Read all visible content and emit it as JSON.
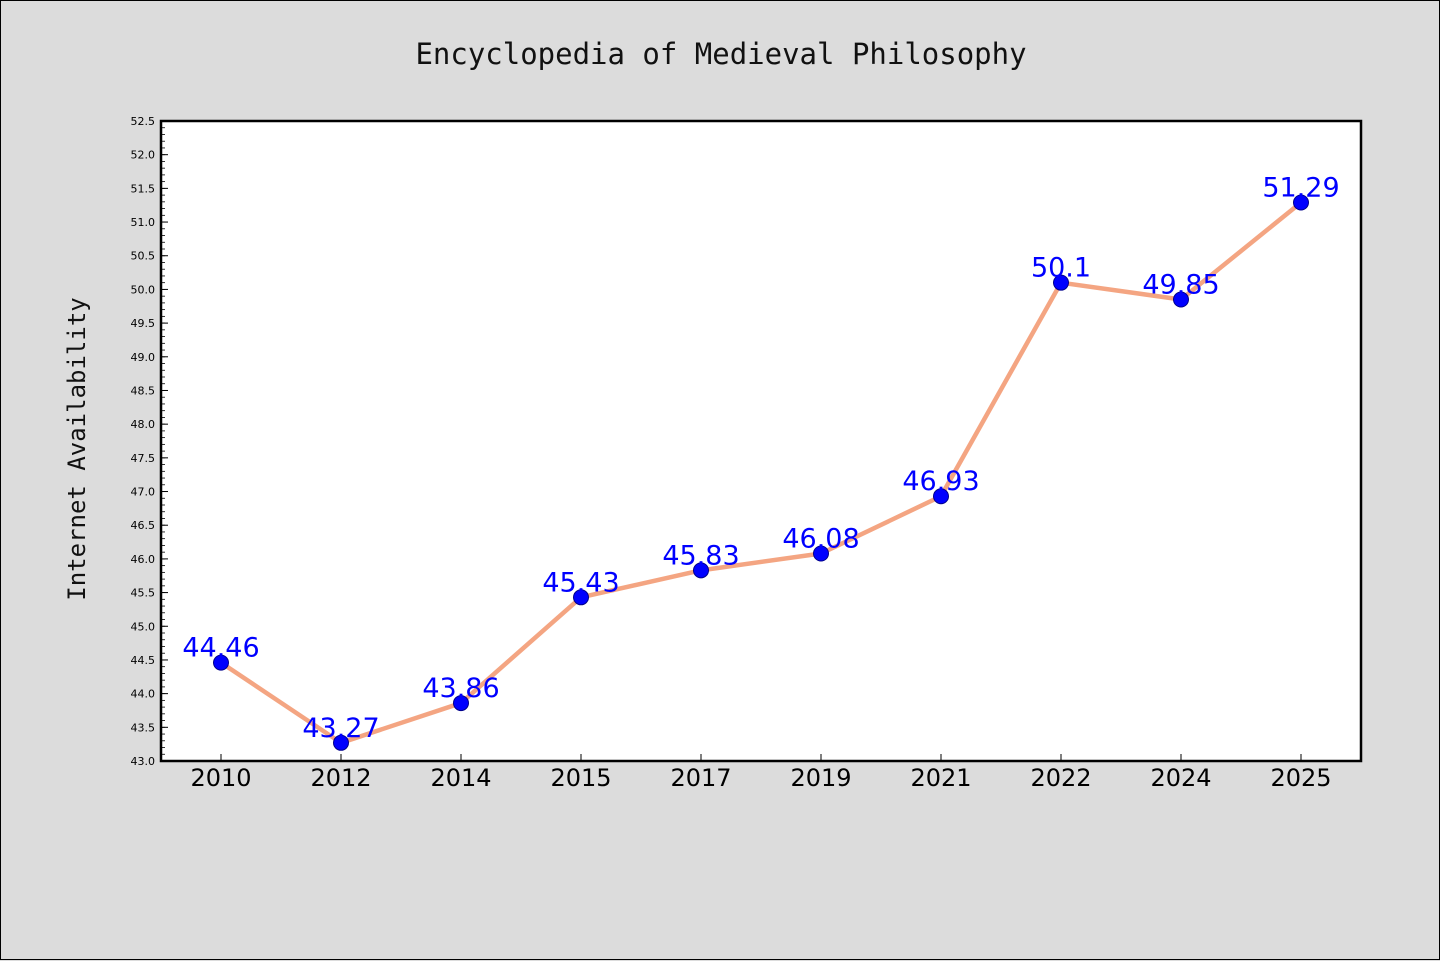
{
  "chart_data": {
    "type": "line",
    "title": "Encyclopedia of Medieval Philosophy",
    "xlabel": "",
    "ylabel": "Internet Availability",
    "categories": [
      "2010",
      "2012",
      "2014",
      "2015",
      "2017",
      "2019",
      "2021",
      "2022",
      "2024",
      "2025"
    ],
    "series": [
      {
        "values": [
          44.46,
          43.27,
          43.86,
          45.43,
          45.83,
          46.08,
          46.93,
          50.1,
          49.85,
          51.29
        ]
      }
    ],
    "data_labels": [
      "44.46",
      "43.27",
      "43.86",
      "45.43",
      "45.83",
      "46.08",
      "46.93",
      "50.1",
      "49.85",
      "51.29"
    ],
    "ylim": [
      43.0,
      52.5
    ],
    "yticks": [
      "43.0",
      "43.5",
      "44.0",
      "44.5",
      "45.0",
      "45.5",
      "46.0",
      "46.5",
      "47.0",
      "47.5",
      "48.0",
      "48.5",
      "49.0",
      "49.5",
      "50.0",
      "50.5",
      "51.0",
      "51.5",
      "52.0",
      "52.5"
    ],
    "grid": false,
    "legend": "none",
    "colors": {
      "line": "#f4a582",
      "marker": "#0000ff",
      "label": "#0000ff",
      "background": "#dcdcdc",
      "plot_background": "#ffffff"
    }
  }
}
